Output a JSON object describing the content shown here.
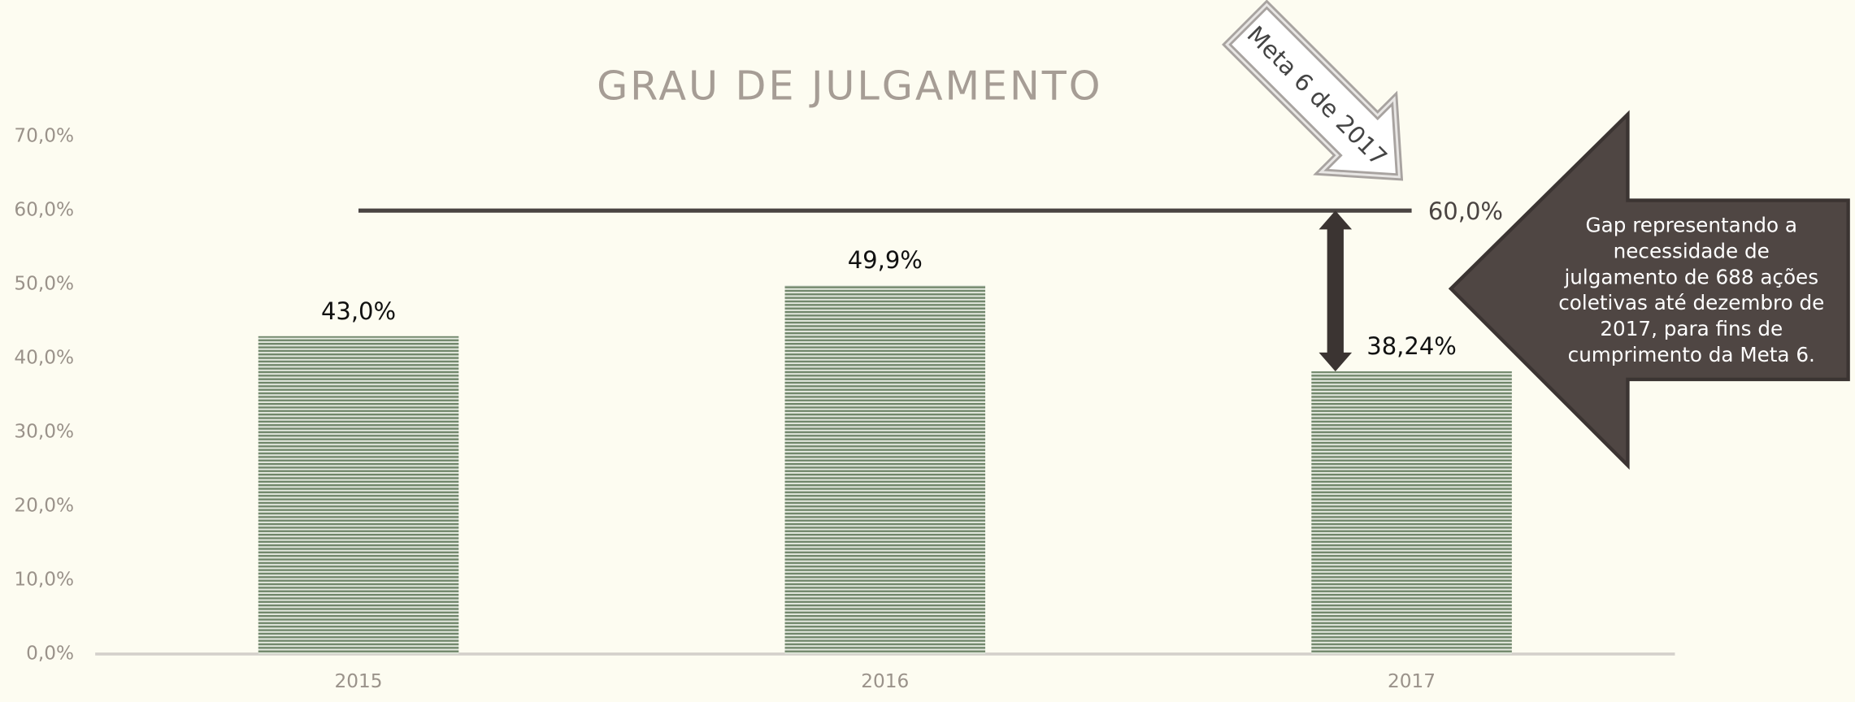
{
  "chart_data": {
    "type": "bar",
    "title": "GRAU DE JULGAMENTO",
    "categories": [
      "2015",
      "2016",
      "2017"
    ],
    "values": [
      43.0,
      49.9,
      38.24
    ],
    "value_labels": [
      "43,0%",
      "49,9%",
      "38,24%"
    ],
    "color": "#6f8569",
    "ylim": [
      0,
      70
    ],
    "yticks": [
      {
        "value": 0,
        "label": "0,0%"
      },
      {
        "value": 10,
        "label": "10,0%"
      },
      {
        "value": 20,
        "label": "20,0%"
      },
      {
        "value": 30,
        "label": "30,0%"
      },
      {
        "value": 40,
        "label": "40,0%"
      },
      {
        "value": 50,
        "label": "50,0%"
      },
      {
        "value": 60,
        "label": "60,0%"
      },
      {
        "value": 70,
        "label": "70,0%"
      }
    ],
    "target": {
      "value": 60,
      "label": "60,0%"
    },
    "arrow_label": "Meta 6 de 2017",
    "callout_lines": [
      "Gap representando a",
      "necessidade de",
      "julgamento de 688 ações",
      "coletivas até dezembro de",
      "2017, para fins de",
      "cumprimento da Meta 6."
    ]
  }
}
